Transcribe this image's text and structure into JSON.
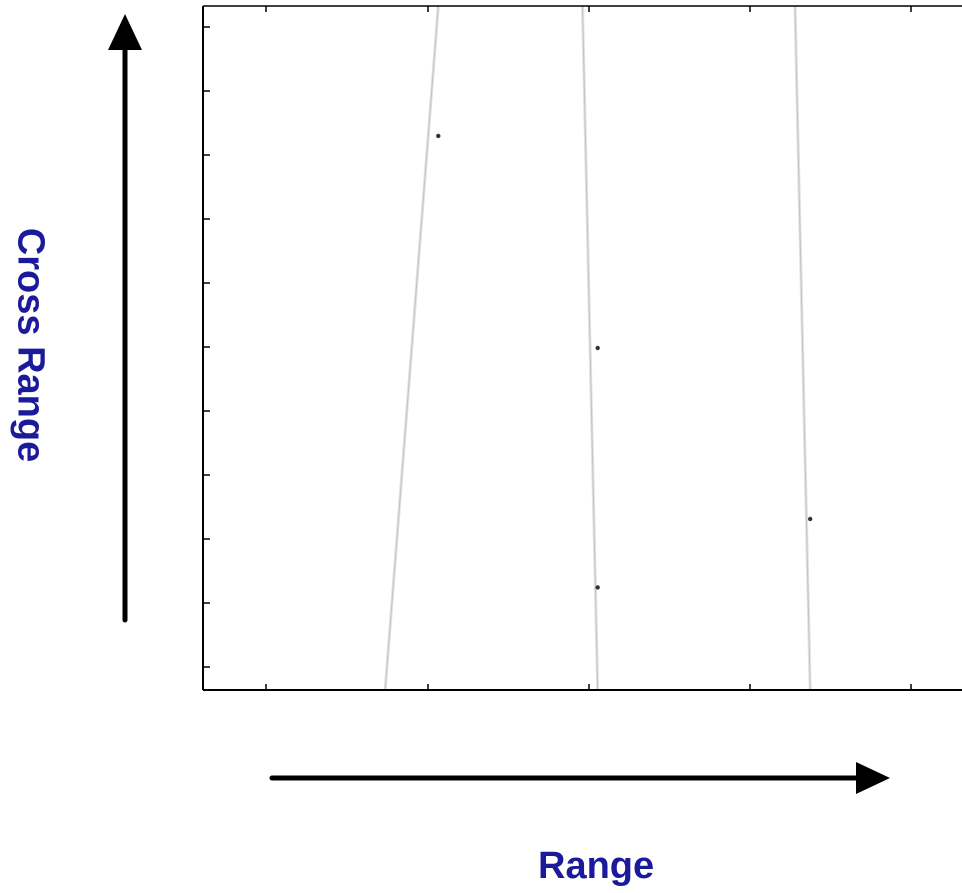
{
  "chart_data": {
    "type": "scatter",
    "xlabel": "Range",
    "ylabel": "Cross Range",
    "title": "",
    "grid": false,
    "x_tick_count": 6,
    "y_tick_count": 11,
    "points": [
      {
        "x": 0.31,
        "y": 0.81
      },
      {
        "x": 0.52,
        "y": 0.5
      },
      {
        "x": 0.52,
        "y": 0.15
      },
      {
        "x": 0.8,
        "y": 0.25
      }
    ],
    "streaks": [
      {
        "x_top": 0.31,
        "x_bottom": 0.24
      },
      {
        "x_top": 0.5,
        "x_bottom": 0.52
      },
      {
        "x_top": 0.78,
        "x_bottom": 0.8
      }
    ]
  },
  "colors": {
    "axis_title": "#1a1a9a",
    "arrow": "#000000",
    "frame": "#000000",
    "point": "#333333",
    "streak": "#dcdcdc"
  },
  "icons": {
    "x_arrow": "arrow-right-icon",
    "y_arrow": "arrow-up-icon"
  }
}
